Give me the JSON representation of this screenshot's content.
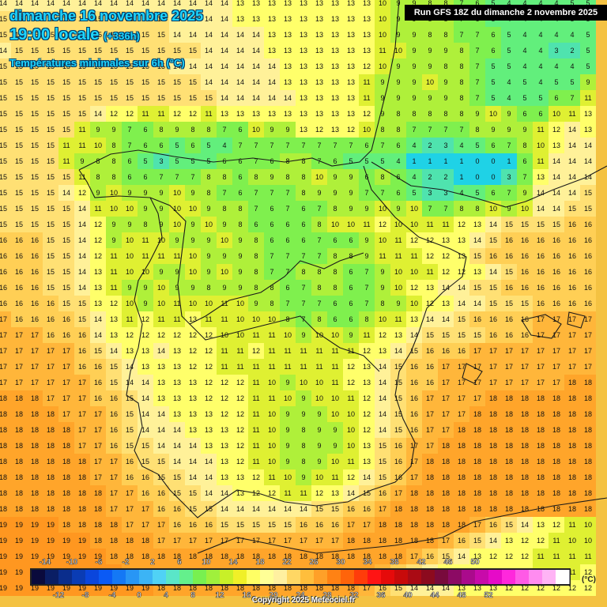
{
  "header": {
    "date_line": "dimanche 16 novembre 2025",
    "time_line": "19:00 locale",
    "offset": "(+336h)",
    "field_line": "Températures minimales sur 6h (°C)",
    "run_label": "Run GFS 18Z du dimanche 2 novembre 2025"
  },
  "footer": {
    "copyright": "Copyright 2025 Meteociel.fr"
  },
  "legend": {
    "unit": "(°C)",
    "top_labels": [
      "-14",
      "-10",
      "-6",
      "-2",
      "2",
      "6",
      "10",
      "14",
      "18",
      "22",
      "26",
      "30",
      "34",
      "38",
      "42",
      "46",
      "50"
    ],
    "bottom_labels": [
      "-12",
      "-8",
      "-4",
      "0",
      "4",
      "8",
      "12",
      "16",
      "20",
      "24",
      "28",
      "32",
      "36",
      "40",
      "44",
      "48",
      "52"
    ],
    "colors": [
      "#0a0a3c",
      "#0a1e64",
      "#0a2d8c",
      "#0a3cb4",
      "#0a46dc",
      "#0a5af5",
      "#1478f5",
      "#2896f5",
      "#3cb4f5",
      "#50d2f5",
      "#5ae6c8",
      "#64f08c",
      "#78f050",
      "#a0f03c",
      "#c8f028",
      "#f0f028",
      "#ffff64",
      "#ffff96",
      "#fff0a0",
      "#ffd764",
      "#ffbe3c",
      "#ffa028",
      "#ff8214",
      "#ff640a",
      "#ff3c0a",
      "#ff1414",
      "#e60a0a",
      "#c80a0a",
      "#aa0a14",
      "#8c0a1e",
      "#780a3c",
      "#8c0a64",
      "#aa0a8c",
      "#c80aaa",
      "#e60ac8",
      "#ff28dc",
      "#ff5ae6",
      "#ff8cf0",
      "#ffb4f5",
      "#ffffff"
    ]
  },
  "map": {
    "cell_size": "20",
    "grid_rows": [
      "14 14 14 14 14 14 14 14 14 14 14 14 14 14 14 13 13 13 13 13 13 13 13 13 10 9 9 8 8 7 6 5 4 4 4 4 5 5",
      "15 15 15 15 15 15 15 15 15 15 15 14 14 14 14 13 13 13 13 13 13 13 13 13 10 9 9 8 8 7 6 5 4 4 4 4 5 5",
      "15 15 15 15 15 15 15 15 15 15 15 14 14 14 14 14 14 13 13 13 13 13 13 13 10 9 9 8 8 7 7 6 5 4 4 4 4 5",
      "14 15 15 15 15 15 15 15 15 15 15 15 15 14 14 14 14 13 13 13 13 13 13 13 11 10 9 9 9 8 7 6 5 4 4 3 2 5",
      "15 15 15 15 15 15 15 15 15 15 15 14 14 14 14 14 14 14 13 13 13 13 13 12 10 9 9 9 8 8 7 5 5 4 4 4 4 5",
      "15 15 15 15 15 15 15 15 15 15 15 15 15 14 14 14 14 14 13 13 13 13 13 11 9 9 9 10 9 8 7 5 4 5 4 5 5 9",
      "15 15 15 15 15 15 15 15 15 15 15 15 15 15 14 14 14 14 14 13 13 13 13 11 9 9 9 9 9 8 7 5 4 5 5 6 7 11",
      "15 15 15 15 15 15 14 12 12 11 11 12 12 11 13 13 13 13 13 13 13 13 13 12 9 8 8 8 8 8 9 10 9 6 6 10 11 13",
      "15 15 15 15 15 11 9 9 7 6 8 9 8 8 7 6 10 9 9 13 12 13 12 10 8 8 7 7 7 7 8 9 9 9 11 12 14 13",
      "15 15 15 15 11 11 10 8 7 6 6 5 6 5 4 7 7 7 7 7 7 7 7 6 7 6 4 2 3 4 5 6 7 8 10 13 14 14",
      "15 15 15 15 11 9 8 8 6 5 3 5 5 5 6 6 7 6 8 8 7 6 5 5 5 4 1 1 1 1 0 0 1 6 11 14 14 14",
      "15 15 15 15 15 11 8 8 6 6 7 7 7 8 8 6 8 9 8 8 10 9 9 6 8 6 4 2 2 1 0 0 3 7 13 14 14 14",
      "15 15 15 15 14 12 9 10 9 9 9 10 9 8 7 6 7 7 7 8 9 9 9 7 7 6 5 3 3 4 5 6 7 9 14 14 14 15",
      "15 15 15 15 15 14 11 10 10 9 9 10 10 9 8 8 7 6 7 6 7 8 9 9 10 9 10 7 7 8 8 10 9 10 14 14 15 15",
      "15 15 15 15 15 14 12 9 9 8 9 10 9 10 9 8 6 6 6 6 8 10 10 11 12 10 10 11 11 12 13 14 15 15 15 15 16 16",
      "16 16 16 15 15 14 12 9 10 11 10 9 9 9 10 9 8 6 6 6 7 6 6 9 10 11 12 12 13 13 14 15 16 16 16 16 16 16",
      "16 16 16 15 15 14 12 11 10 11 11 11 10 9 9 9 8 7 7 7 7 8 8 9 11 11 11 12 12 13 15 16 16 16 16 16 16 16",
      "16 16 16 15 15 14 13 11 10 10 9 9 10 9 10 9 8 7 7 8 8 8 6 7 9 10 10 11 12 12 13 14 15 16 16 16 16 16",
      "16 16 16 15 15 14 13 11 9 9 10 9 9 8 9 9 8 8 6 7 8 8 6 7 9 10 12 13 14 14 15 15 16 16 16 16 16 16",
      "16 16 16 16 15 15 13 12 10 9 10 11 10 10 11 10 9 8 7 7 7 6 6 7 8 9 10 12 13 14 14 15 15 15 16 16 16 16",
      "17 16 16 16 16 15 14 13 11 12 11 11 13 11 11 10 10 10 8 7 8 6 6 8 10 11 13 14 14 15 16 16 16 16 17 17 17 17",
      "17 17 17 16 16 16 14 13 12 12 12 12 12 12 10 10 11 11 10 9 10 10 9 11 12 13 14 15 15 15 15 16 16 16 17 17 17 17",
      "17 17 17 17 17 16 15 14 13 13 14 13 12 12 11 11 12 11 11 11 11 11 11 12 13 14 15 16 16 16 17 17 17 17 17 17 17 17",
      "17 17 17 17 17 16 16 15 14 13 13 13 12 12 11 11 11 11 11 11 11 11 12 13 14 15 16 16 17 17 17 17 17 17 17 17 17 17",
      "17 17 17 17 17 17 16 15 14 14 13 13 13 12 12 12 11 10 9 10 10 11 12 13 14 15 16 16 17 17 17 17 17 17 17 17 18 18",
      "18 18 18 17 17 17 16 16 15 14 13 13 13 12 12 12 11 11 10 9 10 10 11 12 14 15 16 17 17 17 17 18 18 18 18 18 18 18",
      "18 18 18 18 17 17 17 16 15 14 14 13 13 13 12 12 11 10 9 9 9 10 10 12 14 15 16 17 17 17 18 18 18 18 18 18 18 18",
      "18 18 18 18 18 17 17 16 15 14 14 14 13 13 13 12 11 10 9 8 9 9 10 12 14 15 16 17 17 18 18 18 18 18 18 18 18 18",
      "18 18 18 18 18 17 17 16 15 15 14 14 14 13 13 12 11 10 9 8 9 9 10 13 15 16 17 17 18 18 18 18 18 18 18 18 18 18",
      "18 18 18 18 18 18 17 17 16 15 15 14 14 14 13 12 11 10 9 8 9 10 11 13 15 16 17 18 18 18 18 18 18 18 18 18 18 18",
      "18 18 18 18 18 18 17 17 16 16 15 15 14 14 13 13 12 11 10 9 10 11 12 14 15 16 17 18 18 18 18 18 18 18 18 18 18 18",
      "18 18 18 18 18 18 18 17 17 16 16 15 15 14 14 13 12 12 11 11 12 13 14 15 16 17 18 18 18 18 18 18 18 18 18 18 18 18",
      "18 18 18 18 18 18 18 17 17 17 16 16 15 15 14 14 14 14 14 14 15 15 16 16 17 18 18 18 18 18 18 18 18 18 18 18 18 18",
      "19 19 19 19 18 18 18 18 17 17 17 16 16 16 15 15 15 15 15 16 16 16 17 17 18 18 18 18 18 18 17 16 15 14 13 12 11 10",
      "19 19 19 19 19 19 18 18 18 18 17 17 17 17 17 17 17 17 17 17 17 17 18 18 18 18 18 18 17 16 15 14 13 12 12 11 10 10",
      "19 19 19 19 19 19 19 18 18 18 18 18 18 18 18 18 18 18 18 18 18 18 18 18 18 18 17 16 15 14 13 12 12 12 11 11 11 11",
      "19 19 19 19 19 19 19 19 18 18 18 18 18 18 18 18 18 18 18 18 18 18 18 18 17 16 15 14 13 13 13 12 12 12 11 11 11 12",
      "19 19 19 19 19 19 19 19 19 19 18 18 18 18 18 18 18 18 18 18 18 18 18 17 16 15 14 14 14 13 13 13 12 12 12 12 12 12"
    ]
  }
}
